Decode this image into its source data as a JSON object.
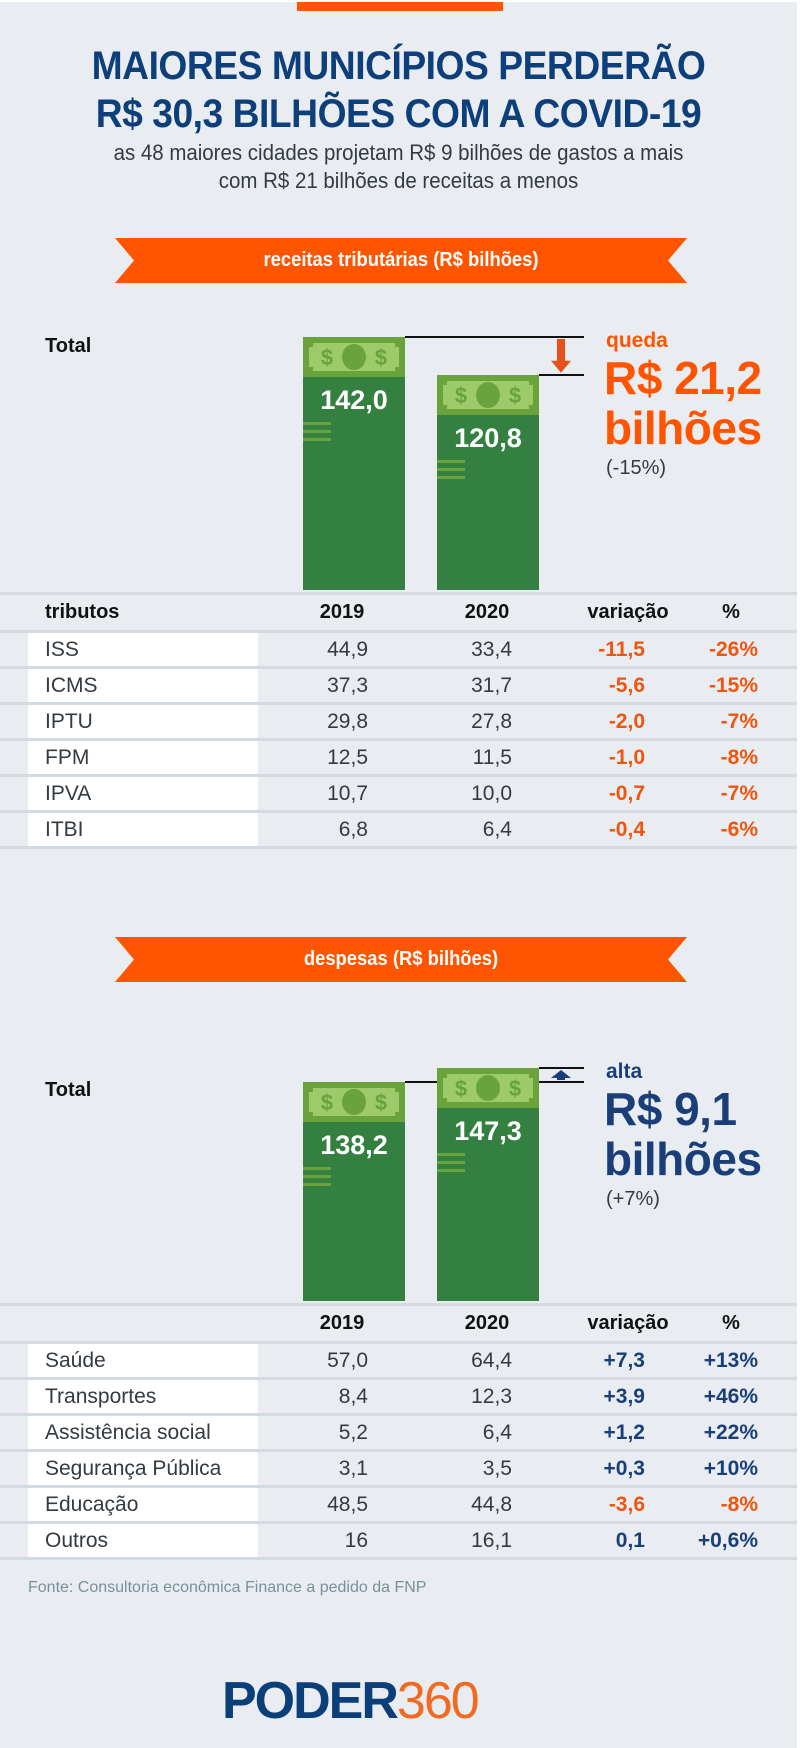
{
  "header": {
    "title_line1": "MAIORES MUNICÍPIOS PERDERÃO",
    "title_line2": "R$ 30,3 BILHÕES COM A COVID-19",
    "subtitle_line1": "as 48 maiores cidades projetam R$ 9 bilhões de gastos a mais",
    "subtitle_line2": "com R$ 21 bilhões de receitas a menos"
  },
  "colors": {
    "accent_orange": "#ff5500",
    "title_blue": "#0d3f7a",
    "bar_green": "#338040",
    "bill_green": "#9dcb6b",
    "negative": "#f0550d",
    "positive": "#1a3f78",
    "background": "#e9edf1"
  },
  "chart_data": [
    {
      "type": "bar",
      "title": "receitas tributárias (R$ bilhões)",
      "row_label": "Total",
      "categories": [
        "2019",
        "2020"
      ],
      "values": [
        142.0,
        120.8
      ],
      "value_labels": [
        "142,0",
        "120,8"
      ],
      "delta": {
        "direction": "down",
        "label": "queda",
        "value": "R$ 21,2",
        "unit": "bilhões",
        "pct": "(-15%)"
      },
      "icons": {
        "bar_top": "money-bill-icon",
        "delta_arrow": "arrow-down-icon"
      }
    },
    {
      "type": "bar",
      "title": "despesas (R$ bilhões)",
      "row_label": "Total",
      "categories": [
        "2019",
        "2020"
      ],
      "values": [
        138.2,
        147.3
      ],
      "value_labels": [
        "138,2",
        "147,3"
      ],
      "delta": {
        "direction": "up",
        "label": "alta",
        "value": "R$ 9,1",
        "unit": "bilhões",
        "pct": "(+7%)"
      },
      "icons": {
        "bar_top": "money-bill-icon",
        "delta_arrow": "arrow-up-icon"
      }
    }
  ],
  "tables": [
    {
      "headers": [
        "tributos",
        "2019",
        "2020",
        "variação",
        "%"
      ],
      "rows": [
        {
          "name": "ISS",
          "y2019": "44,9",
          "y2020": "33,4",
          "var": "-11,5",
          "pct": "-26%",
          "sign": "neg"
        },
        {
          "name": "ICMS",
          "y2019": "37,3",
          "y2020": "31,7",
          "var": "-5,6",
          "pct": "-15%",
          "sign": "neg"
        },
        {
          "name": "IPTU",
          "y2019": "29,8",
          "y2020": "27,8",
          "var": "-2,0",
          "pct": "-7%",
          "sign": "neg"
        },
        {
          "name": "FPM",
          "y2019": "12,5",
          "y2020": "11,5",
          "var": "-1,0",
          "pct": "-8%",
          "sign": "neg"
        },
        {
          "name": "IPVA",
          "y2019": "10,7",
          "y2020": "10,0",
          "var": "-0,7",
          "pct": "-7%",
          "sign": "neg"
        },
        {
          "name": "ITBI",
          "y2019": "6,8",
          "y2020": "6,4",
          "var": "-0,4",
          "pct": "-6%",
          "sign": "neg"
        }
      ]
    },
    {
      "headers": [
        "",
        "2019",
        "2020",
        "variação",
        "%"
      ],
      "rows": [
        {
          "name": "Saúde",
          "y2019": "57,0",
          "y2020": "64,4",
          "var": "+7,3",
          "pct": "+13%",
          "sign": "pos"
        },
        {
          "name": "Transportes",
          "y2019": "8,4",
          "y2020": "12,3",
          "var": "+3,9",
          "pct": "+46%",
          "sign": "pos"
        },
        {
          "name": "Assistência social",
          "y2019": "5,2",
          "y2020": "6,4",
          "var": "+1,2",
          "pct": "+22%",
          "sign": "pos"
        },
        {
          "name": "Segurança Pública",
          "y2019": "3,1",
          "y2020": "3,5",
          "var": "+0,3",
          "pct": "+10%",
          "sign": "pos"
        },
        {
          "name": "Educação",
          "y2019": "48,5",
          "y2020": "44,8",
          "var": "-3,6",
          "pct": "-8%",
          "sign": "neg"
        },
        {
          "name": "Outros",
          "y2019": "16",
          "y2020": "16,1",
          "var": "0,1",
          "pct": "+0,6%",
          "sign": "pos"
        }
      ]
    }
  ],
  "footer": {
    "source": "Fonte: Consultoria econômica Finance a pedido da FNP",
    "logo_word": "PODER",
    "logo_number": "360"
  }
}
